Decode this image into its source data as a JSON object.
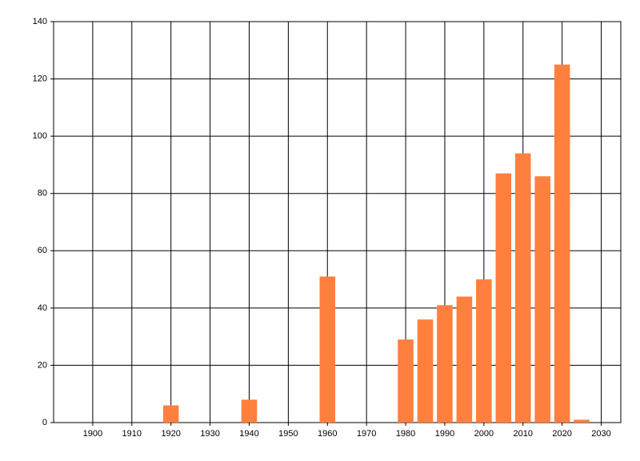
{
  "chart_data": {
    "type": "bar",
    "x": [
      1920,
      1940,
      1960,
      1980,
      1985,
      1990,
      1995,
      2000,
      2005,
      2010,
      2015,
      2020,
      2025
    ],
    "values": [
      6,
      8,
      51,
      29,
      36,
      41,
      44,
      50,
      87,
      94,
      86,
      125,
      1
    ],
    "color": "#ff7f3f",
    "xlim": [
      1890,
      2035
    ],
    "xticks": [
      1900,
      1910,
      1920,
      1930,
      1940,
      1950,
      1960,
      1970,
      1980,
      1990,
      2000,
      2010,
      2020,
      2030
    ],
    "ylim": [
      0,
      140
    ],
    "yticks": [
      0,
      20,
      40,
      60,
      80,
      100,
      120,
      140
    ],
    "grid": true
  }
}
